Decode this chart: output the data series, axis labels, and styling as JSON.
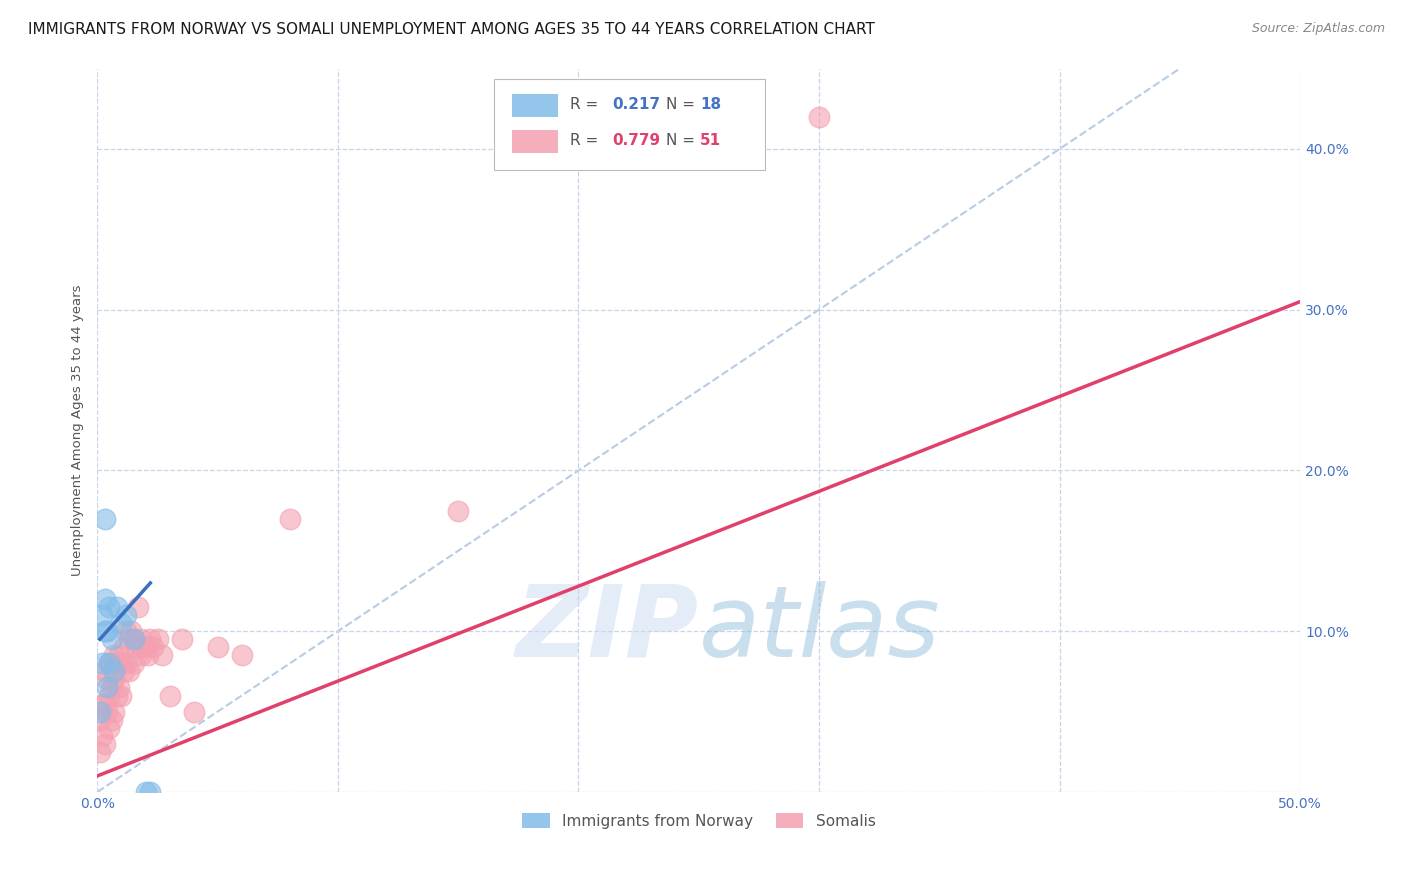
{
  "title": "IMMIGRANTS FROM NORWAY VS SOMALI UNEMPLOYMENT AMONG AGES 35 TO 44 YEARS CORRELATION CHART",
  "source": "Source: ZipAtlas.com",
  "ylabel": "Unemployment Among Ages 35 to 44 years",
  "xlim": [
    0.0,
    0.5
  ],
  "ylim": [
    0.0,
    0.45
  ],
  "xticks": [
    0.0,
    0.1,
    0.2,
    0.3,
    0.4,
    0.5
  ],
  "yticks": [
    0.0,
    0.1,
    0.2,
    0.3,
    0.4
  ],
  "xticklabels": [
    "0.0%",
    "",
    "",
    "",
    "",
    "50.0%"
  ],
  "yticklabels_right": [
    "",
    "10.0%",
    "20.0%",
    "30.0%",
    "40.0%"
  ],
  "norway_color": "#82bce8",
  "somali_color": "#f4a0b0",
  "norway_line_color": "#3a6ec0",
  "somali_line_color": "#e0406a",
  "ref_line_color": "#b8cce4",
  "background_color": "#ffffff",
  "grid_color": "#c8d4e8",
  "norway_scatter_x": [
    0.001,
    0.002,
    0.002,
    0.003,
    0.003,
    0.004,
    0.004,
    0.005,
    0.005,
    0.006,
    0.007,
    0.008,
    0.01,
    0.012,
    0.015,
    0.02,
    0.022,
    0.003
  ],
  "norway_scatter_y": [
    0.05,
    0.08,
    0.11,
    0.1,
    0.12,
    0.065,
    0.1,
    0.115,
    0.08,
    0.095,
    0.075,
    0.115,
    0.105,
    0.11,
    0.095,
    0.0,
    0.0,
    0.17
  ],
  "somali_scatter_x": [
    0.001,
    0.001,
    0.002,
    0.002,
    0.003,
    0.003,
    0.003,
    0.004,
    0.004,
    0.005,
    0.005,
    0.005,
    0.006,
    0.006,
    0.007,
    0.007,
    0.007,
    0.008,
    0.008,
    0.009,
    0.009,
    0.01,
    0.01,
    0.011,
    0.011,
    0.012,
    0.012,
    0.013,
    0.013,
    0.014,
    0.015,
    0.015,
    0.016,
    0.017,
    0.018,
    0.018,
    0.019,
    0.02,
    0.021,
    0.022,
    0.023,
    0.025,
    0.027,
    0.03,
    0.035,
    0.04,
    0.05,
    0.06,
    0.08,
    0.3,
    0.15
  ],
  "somali_scatter_y": [
    0.025,
    0.045,
    0.035,
    0.055,
    0.03,
    0.055,
    0.075,
    0.05,
    0.07,
    0.04,
    0.06,
    0.08,
    0.045,
    0.065,
    0.05,
    0.07,
    0.085,
    0.06,
    0.08,
    0.065,
    0.085,
    0.06,
    0.08,
    0.075,
    0.09,
    0.08,
    0.1,
    0.075,
    0.095,
    0.1,
    0.08,
    0.095,
    0.09,
    0.115,
    0.085,
    0.095,
    0.09,
    0.09,
    0.085,
    0.095,
    0.09,
    0.095,
    0.085,
    0.06,
    0.095,
    0.05,
    0.09,
    0.085,
    0.17,
    0.42,
    0.175
  ],
  "somali_line_x": [
    0.0,
    0.5
  ],
  "somali_line_y": [
    0.01,
    0.305
  ],
  "norway_line_x": [
    0.001,
    0.022
  ],
  "norway_line_y": [
    0.095,
    0.13
  ],
  "title_fontsize": 11,
  "axis_label_fontsize": 9.5,
  "tick_fontsize": 10,
  "legend_fontsize": 11
}
